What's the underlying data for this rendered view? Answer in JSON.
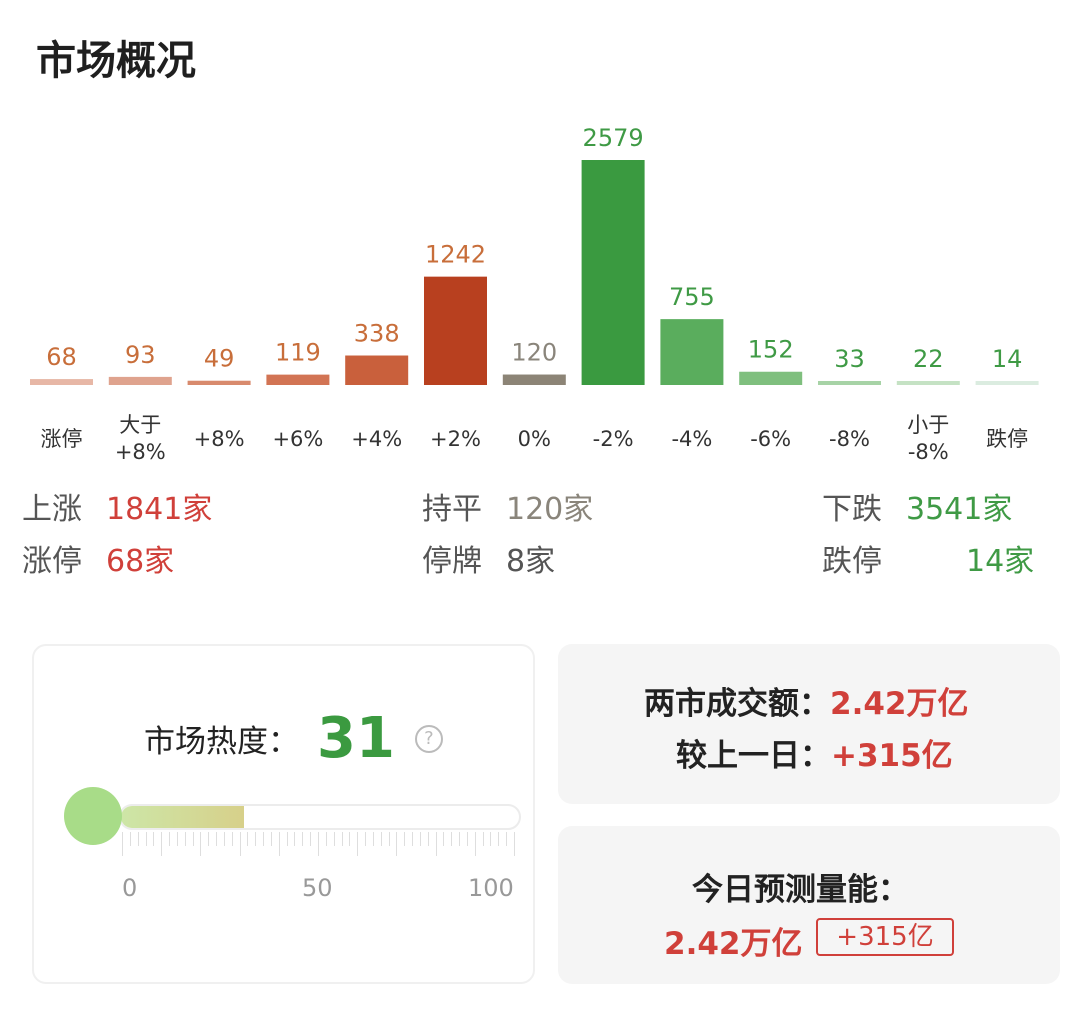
{
  "title": "市场概况",
  "chart_data": {
    "type": "bar",
    "categories": [
      "涨停",
      "大于\n+8%",
      "+8%",
      "+6%",
      "+4%",
      "+2%",
      "0%",
      "-2%",
      "-4%",
      "-6%",
      "-8%",
      "小于\n-8%",
      "跌停"
    ],
    "values": [
      68,
      93,
      49,
      119,
      338,
      1242,
      120,
      2579,
      755,
      152,
      33,
      22,
      14
    ],
    "colors": [
      "#e7b7a6",
      "#dfa38e",
      "#d88a6d",
      "#d27454",
      "#c9603c",
      "#b8401f",
      "#8c8476",
      "#3a9a40",
      "#5aad5d",
      "#7fbf7e",
      "#a7d3a6",
      "#c5e2c4",
      "#dbece0"
    ],
    "label_colors": [
      "#c86e3a",
      "#c86e3a",
      "#c86e3a",
      "#c86e3a",
      "#c86e3a",
      "#c86e3a",
      "#8a857b",
      "#3f9a45",
      "#3f9a45",
      "#3f9a45",
      "#3f9a45",
      "#3f9a45",
      "#3f9a45"
    ]
  },
  "stats": {
    "up_label": "上涨",
    "up_value": "1841家",
    "flat_label": "持平",
    "flat_value": "120家",
    "down_label": "下跌",
    "down_value": "3541家",
    "limit_up_label": "涨停",
    "limit_up_value": "68家",
    "suspended_label": "停牌",
    "suspended_value": "8家",
    "limit_down_label": "跌停",
    "limit_down_value": "14家"
  },
  "heat": {
    "label": "市场热度：",
    "value": "31",
    "level": 31,
    "help_icon": "question-circle-icon",
    "scale": [
      "0",
      "50",
      "100"
    ]
  },
  "turnover": {
    "label": "两市成交额：",
    "value": "2.42万亿",
    "change_label": "较上一日：",
    "change_value": "+315亿"
  },
  "forecast": {
    "label": "今日预测量能：",
    "value": "2.42万亿",
    "badge": "+315亿"
  }
}
